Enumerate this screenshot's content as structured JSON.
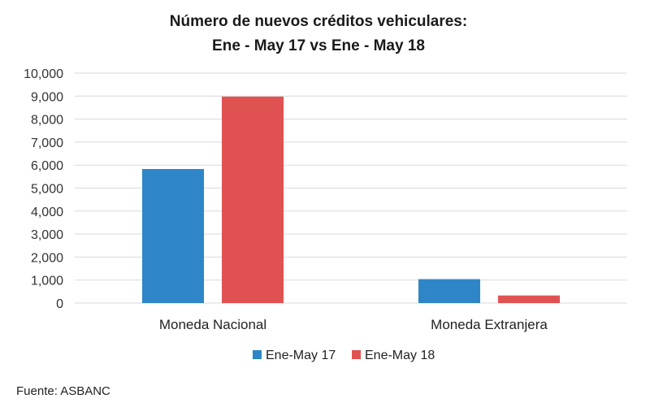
{
  "chart_data": {
    "type": "bar",
    "title": "Número de nuevos créditos vehiculares:",
    "subtitle": "Ene - May 17 vs Ene - May 18",
    "categories": [
      "Moneda Nacional",
      "Moneda Extranjera"
    ],
    "series": [
      {
        "name": "Ene-May 17",
        "color": "#2e86c8",
        "values": [
          5830,
          1040
        ]
      },
      {
        "name": "Ene-May 18",
        "color": "#e05252",
        "values": [
          8980,
          330
        ]
      }
    ],
    "ylim": [
      0,
      10000
    ],
    "yticks": [
      0,
      1000,
      2000,
      3000,
      4000,
      5000,
      6000,
      7000,
      8000,
      9000,
      10000
    ],
    "ytick_labels": [
      "0",
      "1,000",
      "2,000",
      "3,000",
      "4,000",
      "5,000",
      "6,000",
      "7,000",
      "8,000",
      "9,000",
      "10,000"
    ],
    "grid": true,
    "legend_position": "bottom"
  },
  "source": "Fuente: ASBANC"
}
